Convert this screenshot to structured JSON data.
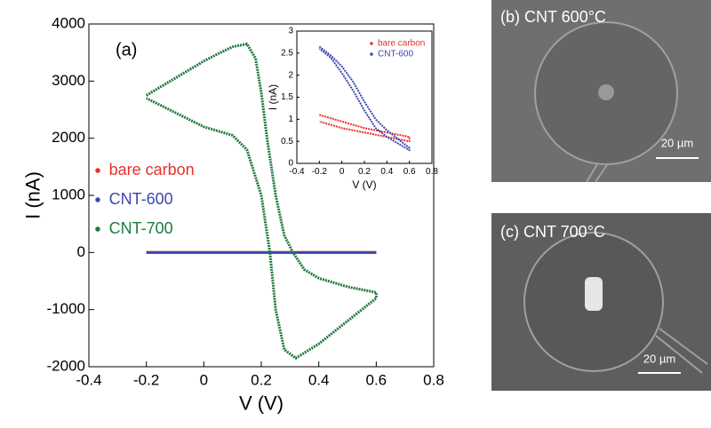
{
  "chart_data": [
    {
      "type": "line",
      "annotation": "(a)",
      "x_label": "V (V)",
      "y_label": "I (nA)",
      "xlim": [
        -0.4,
        0.8
      ],
      "ylim": [
        -2000,
        4000
      ],
      "xticks": [
        -0.4,
        -0.2,
        0,
        0.2,
        0.4,
        0.6,
        0.8
      ],
      "yticks": [
        -2000,
        -1000,
        0,
        1000,
        2000,
        3000,
        4000
      ],
      "legend": "center left",
      "series": [
        {
          "name": "bare carbon",
          "color": "#e8302a",
          "x": [
            -0.2,
            0.6
          ],
          "values": [
            1,
            1
          ]
        },
        {
          "name": "CNT-600",
          "color": "#3c48b0",
          "x": [
            -0.2,
            0.6
          ],
          "values": [
            0,
            0
          ]
        },
        {
          "name": "CNT-700",
          "color": "#1f7a40",
          "x": [
            -0.2,
            -0.15,
            -0.1,
            -0.05,
            0,
            0.05,
            0.1,
            0.15,
            0.18,
            0.2,
            0.22,
            0.25,
            0.28,
            0.31,
            0.35,
            0.4,
            0.5,
            0.6,
            0.6,
            0.5,
            0.4,
            0.32,
            0.28,
            0.25,
            0.23,
            0.2,
            0.15,
            0.1,
            0,
            -0.1,
            -0.2
          ],
          "values": [
            2750,
            2900,
            3050,
            3200,
            3350,
            3480,
            3600,
            3650,
            3400,
            2800,
            2000,
            1000,
            300,
            0,
            -300,
            -450,
            -600,
            -700,
            -800,
            -1200,
            -1600,
            -1850,
            -1700,
            -1000,
            0,
            1000,
            1800,
            2050,
            2200,
            2450,
            2700
          ]
        }
      ]
    },
    {
      "type": "line",
      "x_label": "V (V)",
      "y_label": "I (nA)",
      "xlim": [
        -0.4,
        0.8
      ],
      "ylim": [
        0,
        3
      ],
      "xticks": [
        -0.4,
        -0.2,
        0,
        0.2,
        0.4,
        0.6,
        0.8
      ],
      "yticks": [
        0,
        0.5,
        1,
        1.5,
        2,
        2.5,
        3
      ],
      "legend": "upper right",
      "series": [
        {
          "name": "bare carbon",
          "color": "#e8302a",
          "x": [
            -0.2,
            0,
            0.2,
            0.4,
            0.6,
            0.6,
            0.4,
            0.2,
            0,
            -0.2
          ],
          "values": [
            1.1,
            0.95,
            0.8,
            0.7,
            0.6,
            0.5,
            0.6,
            0.7,
            0.8,
            0.95
          ]
        },
        {
          "name": "CNT-600",
          "color": "#3c48b0",
          "x": [
            -0.2,
            -0.1,
            0,
            0.1,
            0.2,
            0.3,
            0.4,
            0.5,
            0.6,
            0.6,
            0.5,
            0.4,
            0.3,
            0.2,
            0.1,
            0,
            -0.1,
            -0.2
          ],
          "values": [
            2.65,
            2.45,
            2.2,
            1.85,
            1.4,
            1.0,
            0.75,
            0.55,
            0.35,
            0.3,
            0.45,
            0.6,
            0.8,
            1.2,
            1.65,
            2.05,
            2.4,
            2.6
          ]
        }
      ]
    }
  ],
  "panels": [
    {
      "label": "(b) CNT 600°C",
      "scale_bar": "20 µm"
    },
    {
      "label": "(c) CNT 700°C",
      "scale_bar": "20 µm"
    }
  ]
}
